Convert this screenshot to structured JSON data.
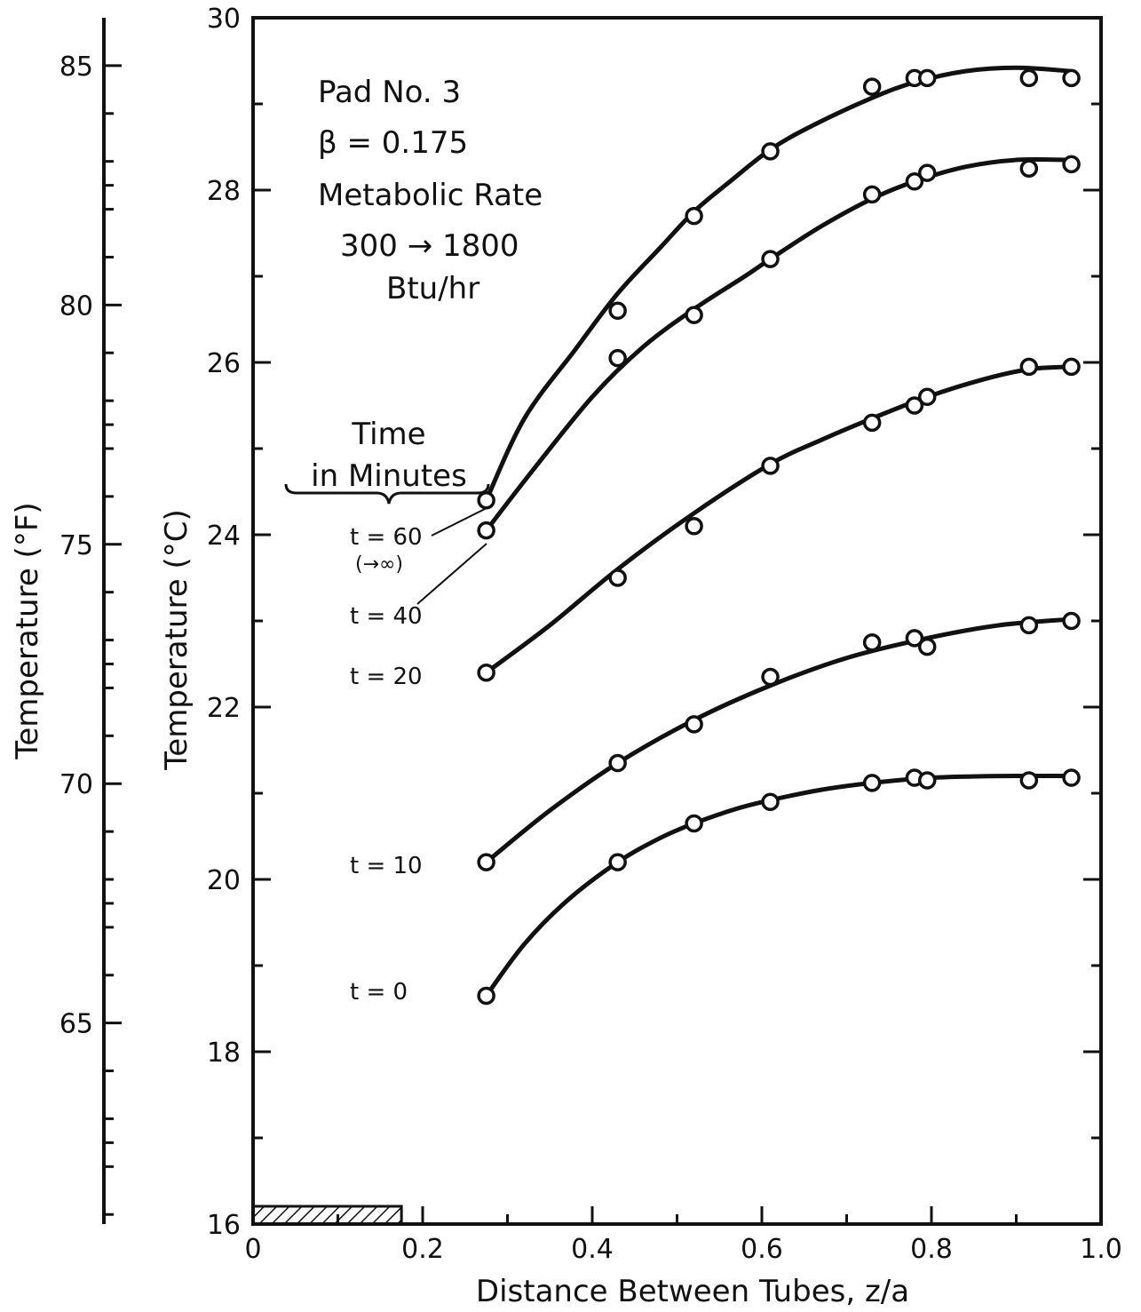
{
  "chart_data": {
    "type": "line",
    "xlabel": "Distance Between Tubes, z/a",
    "ylabel": "Temperature (°C)",
    "y2label": "Temperature (°F)",
    "xlim": [
      0,
      1.0
    ],
    "ylim": [
      16,
      30
    ],
    "y2lim": [
      60.8,
      86
    ],
    "x_ticks": [
      "0",
      "0.2",
      "0.4",
      "0.6",
      "0.8",
      "1.0"
    ],
    "y_ticks": [
      "16",
      "18",
      "20",
      "22",
      "24",
      "26",
      "28",
      "30"
    ],
    "y2_ticks": [
      "65",
      "70",
      "75",
      "80",
      "85"
    ],
    "annotation": {
      "line1": "Pad No. 3",
      "line2": "β = 0.175",
      "line3": "Metabolic Rate",
      "line4": "300 → 1800",
      "line5": "Btu/hr"
    },
    "time_heading": {
      "line1": "Time",
      "line2": "in Minutes"
    },
    "series": [
      {
        "name": "t = 60",
        "sublabel": "(→∞)",
        "label_display": "t = 60",
        "points_x": [
          0.275,
          0.43,
          0.43,
          0.52,
          0.61,
          0.73,
          0.78,
          0.795,
          0.915,
          0.965
        ],
        "points_y": [
          24.4,
          26.6,
          26.05,
          27.7,
          28.45,
          29.2,
          29.3,
          29.3,
          29.3,
          29.3
        ],
        "curve_x": [
          0.275,
          0.32,
          0.38,
          0.43,
          0.48,
          0.52,
          0.56,
          0.61,
          0.66,
          0.73,
          0.78,
          0.84,
          0.9,
          0.965
        ],
        "curve_y": [
          24.4,
          25.35,
          26.15,
          26.8,
          27.33,
          27.75,
          28.08,
          28.47,
          28.75,
          29.07,
          29.25,
          29.38,
          29.42,
          29.38
        ]
      },
      {
        "name": "t = 40",
        "label_display": "t = 40",
        "points_x": [
          0.275,
          0.52,
          0.61,
          0.73,
          0.78,
          0.795,
          0.915,
          0.965
        ],
        "points_y": [
          24.05,
          26.55,
          27.2,
          27.95,
          28.1,
          28.2,
          28.25,
          28.3
        ],
        "curve_x": [
          0.275,
          0.33,
          0.4,
          0.46,
          0.52,
          0.58,
          0.61,
          0.67,
          0.73,
          0.78,
          0.84,
          0.9,
          0.965
        ],
        "curve_y": [
          24.05,
          24.75,
          25.6,
          26.18,
          26.62,
          27.0,
          27.2,
          27.58,
          27.9,
          28.1,
          28.27,
          28.35,
          28.35
        ]
      },
      {
        "name": "t = 20",
        "label_display": "t = 20",
        "points_x": [
          0.275,
          0.43,
          0.52,
          0.61,
          0.73,
          0.78,
          0.795,
          0.915,
          0.965
        ],
        "points_y": [
          22.4,
          23.5,
          24.1,
          24.8,
          25.3,
          25.5,
          25.6,
          25.95,
          25.95
        ],
        "curve_x": [
          0.275,
          0.35,
          0.43,
          0.52,
          0.61,
          0.67,
          0.73,
          0.795,
          0.86,
          0.915,
          0.965
        ],
        "curve_y": [
          22.4,
          22.95,
          23.6,
          24.25,
          24.82,
          25.1,
          25.35,
          25.6,
          25.8,
          25.92,
          25.95
        ]
      },
      {
        "name": "t = 10",
        "label_display": "t = 10",
        "points_x": [
          0.275,
          0.43,
          0.52,
          0.61,
          0.73,
          0.78,
          0.795,
          0.915,
          0.965
        ],
        "points_y": [
          20.2,
          21.35,
          21.8,
          22.35,
          22.75,
          22.8,
          22.7,
          22.95,
          23.0
        ],
        "curve_x": [
          0.275,
          0.35,
          0.43,
          0.52,
          0.61,
          0.7,
          0.795,
          0.88,
          0.965
        ],
        "curve_y": [
          20.2,
          20.8,
          21.35,
          21.85,
          22.25,
          22.57,
          22.8,
          22.95,
          23.02
        ]
      },
      {
        "name": "t = 0",
        "label_display": "t = 0",
        "points_x": [
          0.275,
          0.43,
          0.52,
          0.61,
          0.73,
          0.78,
          0.795,
          0.915,
          0.965
        ],
        "points_y": [
          18.65,
          20.2,
          20.65,
          20.9,
          21.12,
          21.18,
          21.15,
          21.15,
          21.18
        ],
        "curve_x": [
          0.275,
          0.32,
          0.37,
          0.43,
          0.48,
          0.52,
          0.57,
          0.61,
          0.67,
          0.73,
          0.8,
          0.88,
          0.965
        ],
        "curve_y": [
          18.65,
          19.25,
          19.75,
          20.2,
          20.48,
          20.65,
          20.82,
          20.92,
          21.04,
          21.12,
          21.18,
          21.2,
          21.2
        ]
      }
    ],
    "grid": false,
    "hatched_region_x": [
      0,
      0.175
    ]
  }
}
